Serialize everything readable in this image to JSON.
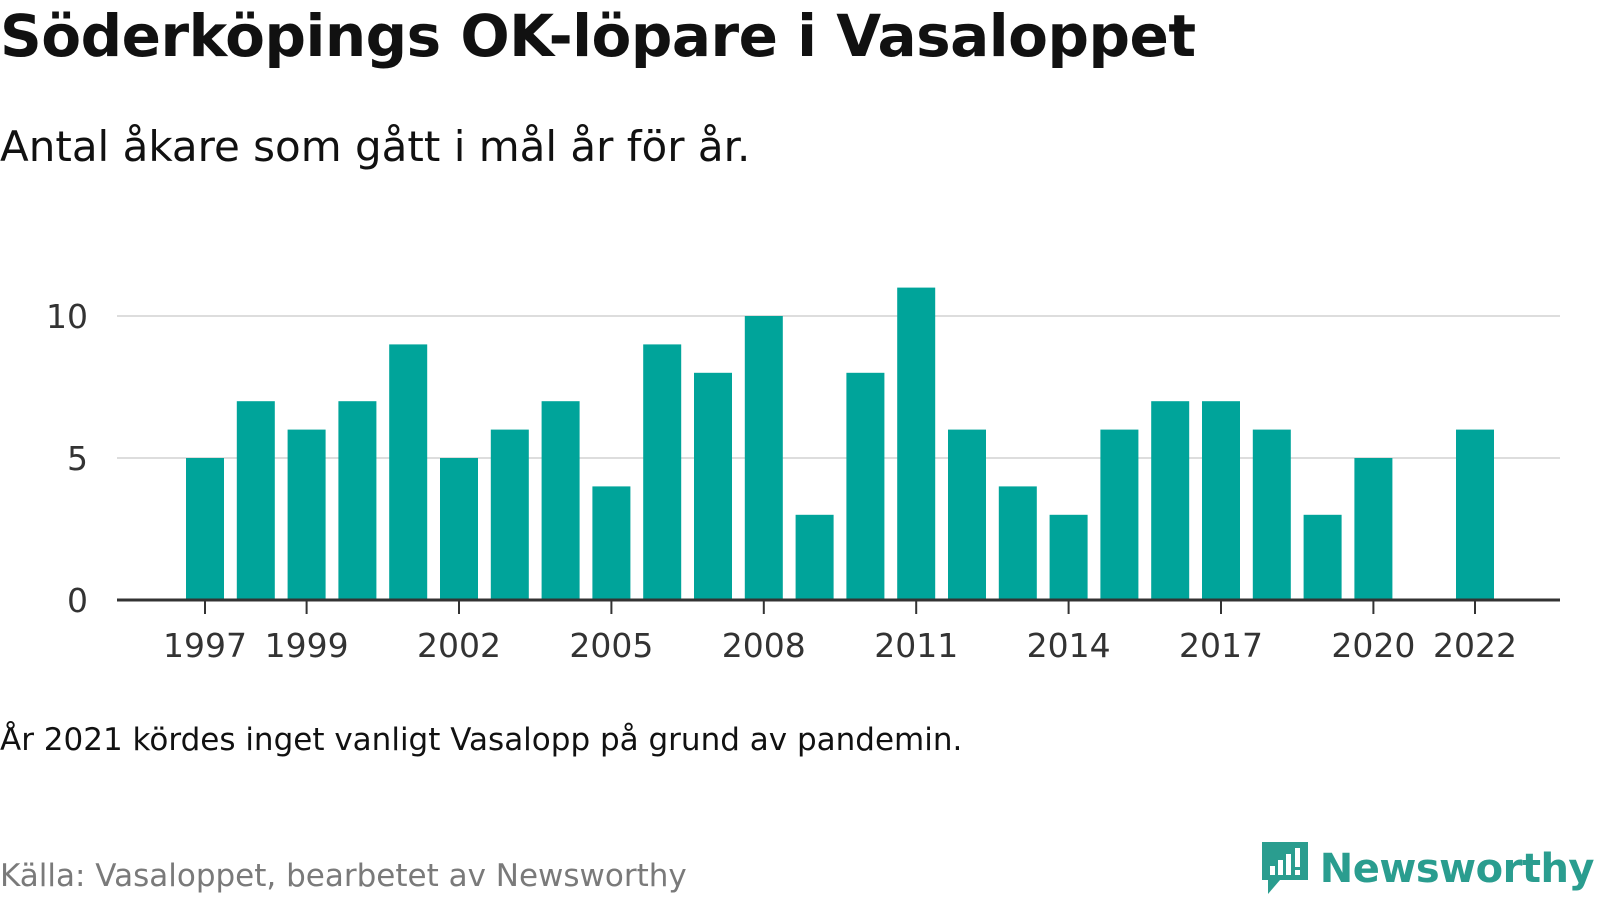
{
  "title": "Söderköpings OK-löpare i Vasaloppet",
  "subtitle": "Antal åkare som gått i mål år för år.",
  "note": "År 2021 kördes inget vanligt Vasalopp på grund av pandemin.",
  "source": "Källa: Vasaloppet, bearbetet av Newsworthy",
  "logo": {
    "text": "Newsworthy",
    "icon": "newsworthy-logo-icon",
    "color": "#2a9d8f"
  },
  "chart_data": {
    "type": "bar",
    "categories": [
      "1997",
      "1998",
      "1999",
      "2000",
      "2001",
      "2002",
      "2003",
      "2004",
      "2005",
      "2006",
      "2007",
      "2008",
      "2009",
      "2010",
      "2011",
      "2012",
      "2013",
      "2014",
      "2015",
      "2016",
      "2017",
      "2018",
      "2019",
      "2020",
      "2021",
      "2022"
    ],
    "values": [
      5,
      7,
      6,
      7,
      9,
      5,
      6,
      7,
      4,
      9,
      8,
      10,
      3,
      8,
      11,
      6,
      4,
      3,
      6,
      7,
      7,
      6,
      3,
      5,
      null,
      6
    ],
    "xtick_labels": [
      "1997",
      "1999",
      "2002",
      "2005",
      "2008",
      "2011",
      "2014",
      "2017",
      "2020",
      "2022"
    ],
    "yticks": [
      0,
      5,
      10
    ],
    "ylim": [
      0,
      11
    ],
    "grid": true,
    "bar_color": "#00a49a",
    "title": "Söderköpings OK-löpare i Vasaloppet",
    "xlabel": "",
    "ylabel": ""
  }
}
